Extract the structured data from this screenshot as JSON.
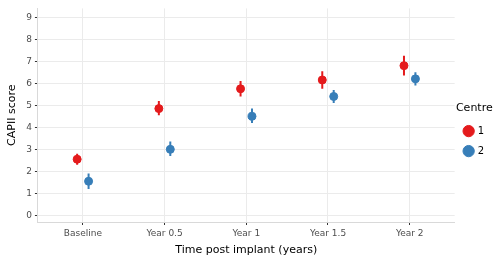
{
  "chart_data": {
    "type": "scatter",
    "x_label": "Time post implant (years)",
    "y_label": "CAPII score",
    "categories": [
      "Baseline",
      "Year 0.5",
      "Year 1",
      "Year 1.5",
      "Year 2"
    ],
    "series": [
      {
        "name": "1",
        "color": "#E41A1C",
        "values": [
          2.55,
          4.85,
          5.75,
          6.15,
          6.8
        ],
        "lower": [
          2.3,
          4.55,
          5.4,
          5.75,
          6.35
        ],
        "upper": [
          2.8,
          5.2,
          6.1,
          6.55,
          7.25
        ]
      },
      {
        "name": "2",
        "color": "#377EB8",
        "values": [
          1.55,
          3.0,
          4.5,
          5.4,
          6.2
        ],
        "lower": [
          1.2,
          2.7,
          4.2,
          5.1,
          5.9
        ],
        "upper": [
          1.9,
          3.35,
          4.85,
          5.7,
          6.5
        ]
      }
    ],
    "ylim": [
      -0.3,
      9.4
    ],
    "yticks": [
      0,
      1,
      2,
      3,
      4,
      5,
      6,
      7,
      8,
      9
    ],
    "grid": true,
    "legend": "right",
    "legend_title": "Centre",
    "marker": "circle"
  }
}
